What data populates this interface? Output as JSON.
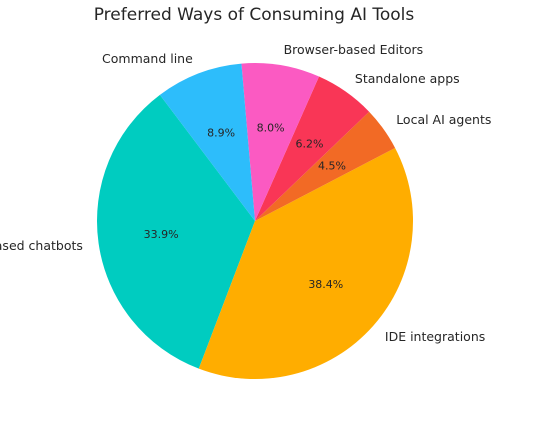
{
  "chart_data": {
    "type": "pie",
    "title": "Preferred Ways of Consuming AI Tools",
    "start_angle_deg": 127,
    "direction": "counterclockwise",
    "slices": [
      {
        "label": "Web-based chatbots",
        "value": 33.9,
        "pct_text": "33.9%",
        "color": "#00CCC0"
      },
      {
        "label": "IDE integrations",
        "value": 38.4,
        "pct_text": "38.4%",
        "color": "#FFAD00"
      },
      {
        "label": "Local AI agents",
        "value": 4.5,
        "pct_text": "4.5%",
        "color": "#F26A25"
      },
      {
        "label": "Standalone apps",
        "value": 6.2,
        "pct_text": "6.2%",
        "color": "#F93656"
      },
      {
        "label": "Browser-based Editors",
        "value": 8.0,
        "pct_text": "8.0%",
        "color": "#FB5AC2"
      },
      {
        "label": "Command line",
        "value": 8.9,
        "pct_text": "8.9%",
        "color": "#2DBDFB"
      }
    ]
  }
}
